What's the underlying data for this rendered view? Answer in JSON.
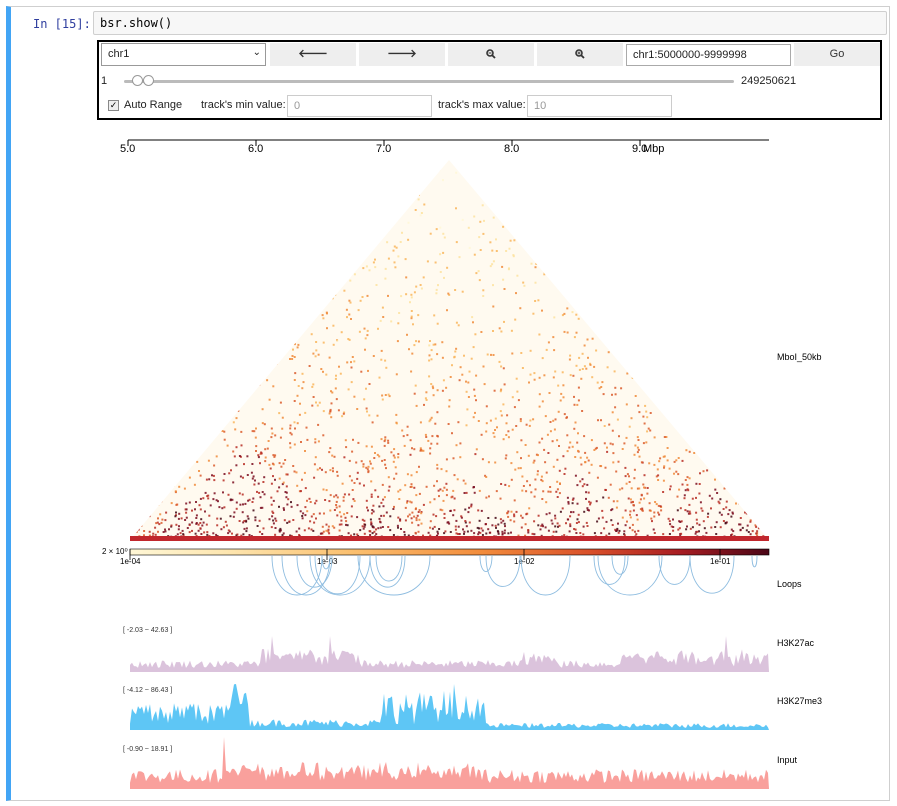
{
  "cell": {
    "prompt": "In [15]:",
    "code": "bsr.show()"
  },
  "widget": {
    "chrom_select": "chr1",
    "back_icon": "arrow-left-icon",
    "forward_icon": "arrow-right-icon",
    "zoom_out_icon": "zoom-out-icon",
    "zoom_in_icon": "zoom-in-icon",
    "region_value": "chr1:5000000-9999998",
    "go_label": "Go",
    "slider_min": "1",
    "slider_max": "249250621",
    "slider_range": [
      5000000,
      9999998
    ],
    "auto_range_label": "Auto Range",
    "auto_range_checked": true,
    "min_label": "track's min value:",
    "min_placeholder": "0",
    "max_label": "track's max value:",
    "max_placeholder": "10"
  },
  "figure": {
    "axis": {
      "ticks": [
        "5.0",
        "6.0",
        "7.0",
        "8.0",
        "9.0"
      ],
      "unit": "Mbp"
    },
    "hic_label": "MboI_50kb",
    "colorbar": {
      "prefix": "2 × 10⁰",
      "ticks": [
        "1e-04",
        "1e-03",
        "1e-02",
        "1e-01"
      ]
    },
    "loops_label": "Loops",
    "tracks": [
      {
        "name": "H3K27ac",
        "range": "[ -2.03 ~ 42.63 ]",
        "color": "#dbc3dc"
      },
      {
        "name": "H3K27me3",
        "range": "[ -4.12 ~ 86.43 ]",
        "color": "#5ec6f5"
      },
      {
        "name": "Input",
        "range": "[ -0.90 ~ 18.91 ]",
        "color": "#f9a09c"
      }
    ],
    "colormap": [
      "#fff7d6",
      "#fde2a0",
      "#f9b55c",
      "#f08a3a",
      "#db5a2c",
      "#b72a22",
      "#7a0a1e",
      "#420512"
    ]
  }
}
